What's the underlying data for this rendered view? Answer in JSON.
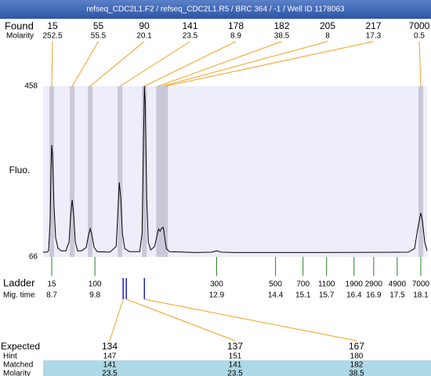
{
  "header": {
    "title": "refseq_CDC2L1.F2 / refseq_CDC2L1.R5 / BRC 364 / -1 / Well ID 1178063"
  },
  "chart_data": {
    "type": "line",
    "ylabel": "Fluo.",
    "ylim": [
      66,
      458
    ],
    "yticks": [
      66,
      458
    ],
    "xlim": [
      8.48,
      18.26
    ],
    "grid": false,
    "color": "#000000",
    "plot_background": "#eeeefa",
    "x": [
      8.48,
      8.58,
      8.62,
      8.66,
      8.68,
      8.7,
      8.72,
      8.76,
      8.8,
      8.86,
      8.94,
      9.06,
      9.14,
      9.18,
      9.22,
      9.26,
      9.3,
      9.36,
      9.46,
      9.58,
      9.64,
      9.68,
      9.72,
      9.78,
      9.86,
      10.18,
      10.34,
      10.38,
      10.42,
      10.46,
      10.5,
      10.56,
      10.68,
      10.94,
      11.0,
      11.04,
      11.06,
      11.08,
      11.12,
      11.16,
      11.22,
      11.32,
      11.38,
      11.42,
      11.46,
      11.5,
      11.54,
      11.58,
      11.62,
      11.7,
      12.38,
      12.78,
      12.9,
      13.02,
      13.38,
      15.38,
      17.78,
      17.94,
      18.02,
      18.1,
      18.14,
      18.2,
      18.26
    ],
    "values": [
      77,
      77,
      80,
      150,
      260,
      323,
      300,
      180,
      110,
      86,
      80,
      80,
      100,
      160,
      197,
      160,
      100,
      80,
      80,
      88,
      118,
      131,
      118,
      88,
      78,
      77,
      90,
      160,
      237,
      200,
      120,
      85,
      78,
      78,
      120,
      350,
      458,
      420,
      200,
      100,
      82,
      90,
      115,
      130,
      125,
      132,
      134,
      110,
      85,
      78,
      76,
      77,
      80,
      77,
      76,
      76,
      77,
      85,
      130,
      167,
      150,
      100,
      80
    ],
    "found": {
      "label": "Found",
      "molarity_label": "Molarity",
      "band_color": "#c8c8d8",
      "connector_color": "#f0a020",
      "peaks": [
        {
          "size": 15,
          "molarity": 252.5,
          "time": 8.7
        },
        {
          "size": 55,
          "molarity": 55.5,
          "time": 9.22
        },
        {
          "size": 90,
          "molarity": 20.1,
          "time": 9.68
        },
        {
          "size": 141,
          "molarity": 23.5,
          "time": 10.44
        },
        {
          "size": 178,
          "molarity": 8.9,
          "time": 11.06
        },
        {
          "size": 182,
          "molarity": 38.5,
          "time": 11.42
        },
        {
          "size": 205,
          "molarity": 8,
          "time": 11.52
        },
        {
          "size": 217,
          "molarity": 17.3,
          "time": 11.6
        },
        {
          "size": 7000,
          "molarity": 0.5,
          "time": 18.1
        }
      ]
    },
    "ladder": {
      "label": "Ladder",
      "time_label": "Mig. time",
      "color": "#208020",
      "items": [
        {
          "size": 15,
          "time": 8.7
        },
        {
          "size": 100,
          "time": 9.8
        },
        {
          "size": 300,
          "time": 12.9
        },
        {
          "size": 500,
          "time": 14.4
        },
        {
          "size": 700,
          "time": 15.1
        },
        {
          "size": 1100,
          "time": 15.7
        },
        {
          "size": 1900,
          "time": 16.4
        },
        {
          "size": 2900,
          "time": 16.9
        },
        {
          "size": 4900,
          "time": 17.5
        },
        {
          "size": 7000,
          "time": 18.1
        }
      ]
    },
    "expected": {
      "marker_color": "#2020c0",
      "connector_color": "#f0a020",
      "highlight": "#add8e6",
      "marker_times": [
        10.52,
        10.6,
        11.06
      ],
      "rows": [
        {
          "label": "Expected",
          "values": [
            134,
            137,
            167
          ]
        },
        {
          "label": "Hint",
          "values": [
            147,
            151,
            180
          ]
        },
        {
          "label": "Matched",
          "values": [
            141,
            141,
            182
          ]
        },
        {
          "label": "Molarity",
          "values": [
            23.5,
            23.5,
            38.5
          ]
        }
      ]
    }
  }
}
